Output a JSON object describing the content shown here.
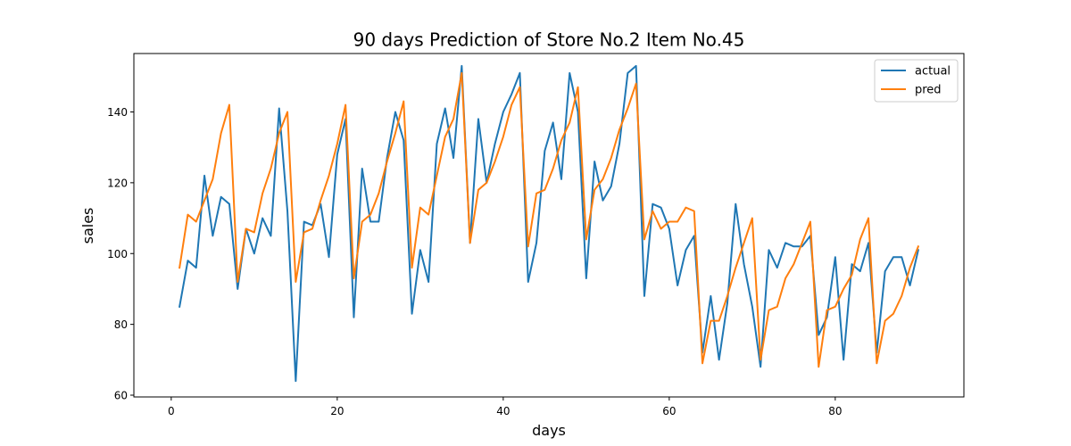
{
  "chart_data": {
    "type": "line",
    "title": "90 days Prediction of Store No.2 Item No.45",
    "xlabel": "days",
    "ylabel": "sales",
    "xlim": [
      -4.5,
      95.5
    ],
    "ylim": [
      59.5,
      156.5
    ],
    "x_ticks": [
      0,
      20,
      40,
      60,
      80
    ],
    "y_ticks": [
      60,
      80,
      100,
      120,
      140
    ],
    "grid": false,
    "legend_position": "top-right",
    "x": [
      1,
      2,
      3,
      4,
      5,
      6,
      7,
      8,
      9,
      10,
      11,
      12,
      13,
      14,
      15,
      16,
      17,
      18,
      19,
      20,
      21,
      22,
      23,
      24,
      25,
      26,
      27,
      28,
      29,
      30,
      31,
      32,
      33,
      34,
      35,
      36,
      37,
      38,
      39,
      40,
      41,
      42,
      43,
      44,
      45,
      46,
      47,
      48,
      49,
      50,
      51,
      52,
      53,
      54,
      55,
      56,
      57,
      58,
      59,
      60,
      61,
      62,
      63,
      64,
      65,
      66,
      67,
      68,
      69,
      70,
      71,
      72,
      73,
      74,
      75,
      76,
      77,
      78,
      79,
      80,
      81,
      82,
      83,
      84,
      85,
      86,
      87,
      88,
      89,
      90
    ],
    "series": [
      {
        "name": "actual",
        "color": "#1f77b4",
        "values": [
          85,
          98,
          96,
          122,
          105,
          116,
          114,
          90,
          107,
          100,
          110,
          105,
          141,
          112,
          64,
          109,
          108,
          114,
          99,
          128,
          138,
          82,
          124,
          109,
          109,
          127,
          140,
          132,
          83,
          101,
          92,
          131,
          141,
          127,
          153,
          103,
          138,
          120,
          131,
          140,
          145,
          151,
          92,
          103,
          129,
          137,
          121,
          151,
          140,
          93,
          126,
          115,
          119,
          131,
          151,
          153,
          88,
          114,
          113,
          107,
          91,
          101,
          105,
          72,
          88,
          70,
          86,
          114,
          97,
          85,
          68,
          101,
          96,
          103,
          102,
          102,
          105,
          77,
          82,
          99,
          70,
          97,
          95,
          103,
          72,
          95,
          99,
          99,
          91,
          101
        ]
      },
      {
        "name": "pred",
        "color": "#ff7f0e",
        "values": [
          96,
          111,
          109,
          115,
          121,
          134,
          142,
          92,
          107,
          106,
          117,
          124,
          134,
          140,
          92,
          106,
          107,
          115,
          122,
          131,
          142,
          93,
          109,
          111,
          117,
          126,
          134,
          143,
          96,
          113,
          111,
          122,
          133,
          138,
          151,
          103,
          118,
          120,
          126,
          133,
          142,
          147,
          102,
          117,
          118,
          124,
          132,
          137,
          147,
          104,
          118,
          121,
          127,
          135,
          141,
          148,
          104,
          112,
          107,
          109,
          109,
          113,
          112,
          69,
          81,
          81,
          88,
          96,
          103,
          110,
          70,
          84,
          85,
          93,
          97,
          103,
          109,
          68,
          84,
          85,
          90,
          94,
          104,
          110,
          69,
          81,
          83,
          88,
          96,
          102
        ]
      }
    ]
  }
}
